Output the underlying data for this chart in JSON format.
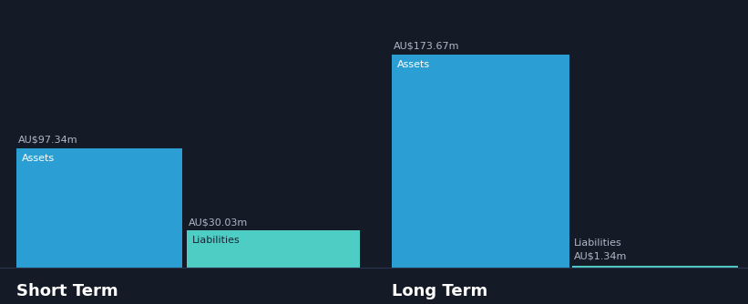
{
  "background_color": "#141a26",
  "short_term": {
    "assets_value": 97.34,
    "liabilities_value": 30.03,
    "assets_label": "Assets",
    "liabilities_label": "Liabilities",
    "assets_color": "#2b9fd4",
    "liabilities_color": "#4ecdc4",
    "section_title": "Short Term"
  },
  "long_term": {
    "assets_value": 173.67,
    "liabilities_value": 1.34,
    "assets_label": "Assets",
    "liabilities_label": "Liabilities",
    "assets_color": "#2b9fd4",
    "liabilities_color": "#4ecdc4",
    "section_title": "Long Term"
  },
  "label_color": "#ffffff",
  "value_label_color": "#b0b8c8",
  "title_color": "#ffffff",
  "max_value": 200
}
